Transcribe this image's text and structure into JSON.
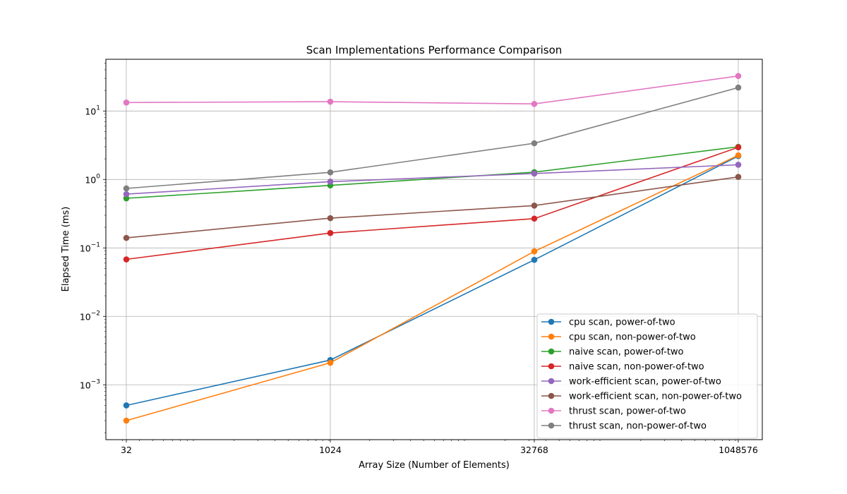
{
  "chart_data": {
    "type": "line",
    "title": "Scan Implementations Performance Comparison",
    "xlabel": "Array Size (Number of Elements)",
    "ylabel": "Elapsed Time (ms)",
    "x_scale": "log2",
    "y_scale": "log10",
    "x": [
      32,
      1024,
      32768,
      1048576
    ],
    "x_tick_labels": [
      "32",
      "1024",
      "32768",
      "1048576"
    ],
    "xlim": [
      22.6,
      1577000
    ],
    "ylim": [
      0.000158,
      57
    ],
    "y_ticks": [
      {
        "base": "10",
        "exp": "−3",
        "value": 0.001
      },
      {
        "base": "10",
        "exp": "−2",
        "value": 0.01
      },
      {
        "base": "10",
        "exp": "−1",
        "value": 0.1
      },
      {
        "base": "10",
        "exp": "0",
        "value": 1
      },
      {
        "base": "10",
        "exp": "1",
        "value": 10
      }
    ],
    "grid": true,
    "legend_position": "lower-right",
    "series": [
      {
        "name": "cpu scan, power-of-two",
        "color": "#1f77b4",
        "values": [
          0.0005,
          0.0023,
          0.067,
          2.2
        ]
      },
      {
        "name": "cpu scan, non-power-of-two",
        "color": "#ff7f0e",
        "values": [
          0.0003,
          0.0021,
          0.089,
          2.25
        ]
      },
      {
        "name": "naive scan, power-of-two",
        "color": "#2ca02c",
        "values": [
          0.53,
          0.82,
          1.28,
          3.0
        ]
      },
      {
        "name": "naive scan, non-power-of-two",
        "color": "#d62728",
        "values": [
          0.068,
          0.165,
          0.268,
          2.95
        ]
      },
      {
        "name": "work-efficient scan, power-of-two",
        "color": "#9467bd",
        "values": [
          0.61,
          0.93,
          1.22,
          1.64
        ]
      },
      {
        "name": "work-efficient scan, non-power-of-two",
        "color": "#8c564b",
        "values": [
          0.14,
          0.272,
          0.415,
          1.09
        ]
      },
      {
        "name": "thrust scan, power-of-two",
        "color": "#e377c2",
        "values": [
          13.3,
          13.7,
          12.7,
          32.5
        ]
      },
      {
        "name": "thrust scan, non-power-of-two",
        "color": "#7f7f7f",
        "values": [
          0.74,
          1.27,
          3.38,
          22.0
        ]
      }
    ]
  }
}
